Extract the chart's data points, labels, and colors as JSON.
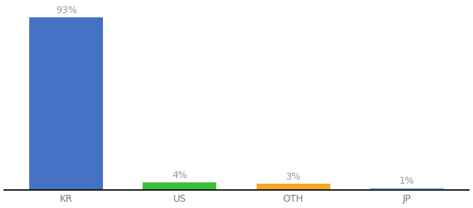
{
  "categories": [
    "KR",
    "US",
    "OTH",
    "JP"
  ],
  "values": [
    93,
    4,
    3,
    1
  ],
  "labels": [
    "93%",
    "4%",
    "3%",
    "1%"
  ],
  "bar_colors": [
    "#4472C4",
    "#3DBF3D",
    "#F5A623",
    "#87CEEB"
  ],
  "background_color": "#ffffff",
  "ylim": [
    0,
    100
  ],
  "bar_width": 0.65,
  "label_fontsize": 10,
  "tick_fontsize": 10,
  "label_color": "#999999",
  "tick_color": "#777777",
  "spine_color": "#111111"
}
